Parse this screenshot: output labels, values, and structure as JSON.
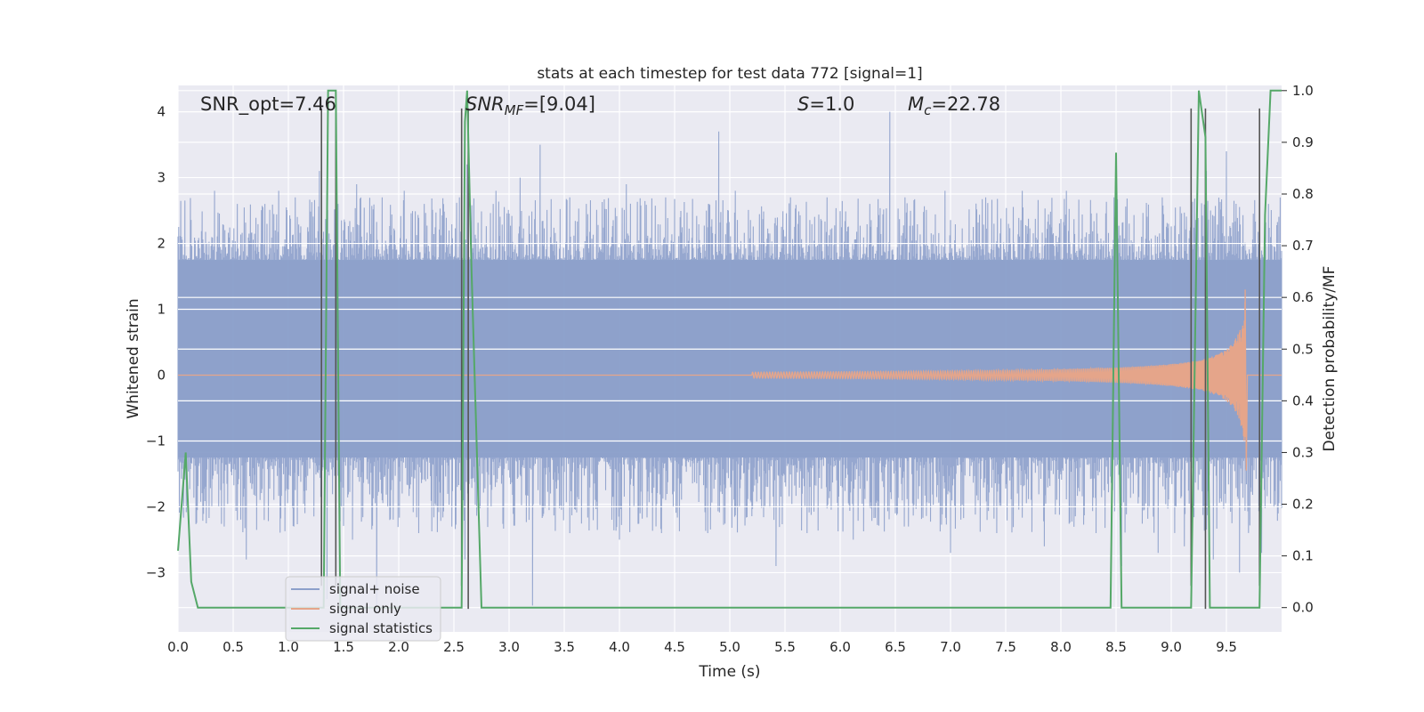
{
  "chart_data": {
    "type": "line",
    "title": "stats at each timestep for test data 772 [signal=1]",
    "xlabel": "Time (s)",
    "ylabel": "Whitened strain",
    "ylabel_right": "Detection probability/MF",
    "xlim": [
      0.0,
      10.0
    ],
    "ylim": [
      -3.9,
      4.4
    ],
    "ylim_right": [
      -0.047,
      1.01
    ],
    "x_ticks": [
      "0.0",
      "0.5",
      "1.0",
      "1.5",
      "2.0",
      "2.5",
      "3.0",
      "3.5",
      "4.0",
      "4.5",
      "5.0",
      "5.5",
      "6.0",
      "6.5",
      "7.0",
      "7.5",
      "8.0",
      "8.5",
      "9.0",
      "9.5"
    ],
    "y_ticks": [
      "−3",
      "−2",
      "−1",
      "0",
      "1",
      "2",
      "3",
      "4"
    ],
    "y_ticks_right": [
      "0.0",
      "0.1",
      "0.2",
      "0.3",
      "0.4",
      "0.5",
      "0.6",
      "0.7",
      "0.8",
      "0.9",
      "1.0"
    ],
    "grid": true,
    "legend_position": "lower-left",
    "annotations": {
      "snr_opt": "SNR_opt=7.46",
      "snr_mf_base": "SNR",
      "snr_mf_sub": "MF",
      "snr_mf_tail": "=[9.04]",
      "s_sym": "S",
      "s_val": "=1.0",
      "mc_base": "M",
      "mc_sub": "c",
      "mc_val": "=22.78"
    },
    "series": [
      {
        "name": "signal+ noise",
        "color": "#8da0cb",
        "noise_band": {
          "upper_typical": 1.8,
          "lower_typical": -1.3
        },
        "peaks_x": [
          0.33,
          0.54,
          0.79,
          0.91,
          1.06,
          1.28,
          1.35,
          1.45,
          1.62,
          1.85,
          2.05,
          2.23,
          2.55,
          2.62,
          2.88,
          3.1,
          3.28,
          3.55,
          3.7,
          4.06,
          4.42,
          4.9,
          5.05,
          5.55,
          5.88,
          6.27,
          6.45,
          6.95,
          7.32,
          7.65,
          8.05,
          8.48,
          8.92,
          9.32,
          9.5,
          9.88
        ],
        "peaks_y": [
          2.8,
          2.6,
          2.6,
          2.8,
          2.7,
          3.1,
          2.8,
          2.6,
          2.9,
          2.7,
          2.8,
          2.6,
          2.7,
          3.2,
          2.8,
          3.0,
          3.5,
          2.7,
          2.6,
          2.9,
          2.7,
          3.7,
          2.8,
          2.7,
          2.7,
          2.6,
          4.0,
          2.8,
          2.7,
          2.8,
          2.8,
          2.7,
          2.7,
          3.1,
          3.4,
          2.6
        ],
        "troughs_x": [
          0.42,
          0.62,
          0.78,
          1.05,
          1.35,
          1.58,
          1.8,
          1.92,
          2.18,
          2.48,
          2.6,
          3.21,
          3.55,
          4.0,
          4.38,
          4.8,
          5.42,
          5.7,
          6.12,
          6.58,
          7.0,
          7.42,
          7.85,
          8.32,
          8.55,
          8.88,
          9.12,
          9.38,
          9.62,
          9.82
        ],
        "troughs_y": [
          -2.3,
          -2.8,
          -2.2,
          -2.3,
          -3.4,
          -2.5,
          -3.6,
          -2.2,
          -2.4,
          -2.3,
          -2.8,
          -3.5,
          -2.4,
          -2.5,
          -2.4,
          -2.4,
          -2.9,
          -2.4,
          -2.5,
          -2.3,
          -2.7,
          -2.4,
          -2.6,
          -2.4,
          -2.9,
          -2.7,
          -2.6,
          -2.8,
          -3.0,
          -2.7
        ]
      },
      {
        "name": "signal only",
        "color": "#e5a58a",
        "chirp": {
          "start": 5.2,
          "end": 9.67,
          "peak_amp": 1.3,
          "final_dip": -1.45
        }
      },
      {
        "name": "signal statistics",
        "color": "#55a868",
        "axis": "right",
        "x": [
          0.0,
          0.07,
          0.12,
          0.18,
          1.32,
          1.36,
          1.43,
          1.47,
          2.57,
          2.6,
          2.62,
          2.66,
          2.75,
          8.45,
          8.5,
          8.55,
          9.18,
          9.25,
          9.31,
          9.35,
          9.8,
          9.85,
          9.9,
          10.0
        ],
        "y": [
          0.11,
          0.3,
          0.05,
          0.0,
          0.0,
          1.0,
          1.0,
          0.0,
          0.0,
          0.94,
          1.0,
          0.65,
          0.0,
          0.0,
          0.88,
          0.0,
          0.0,
          1.0,
          0.91,
          0.0,
          0.0,
          0.76,
          1.0,
          1.0
        ]
      }
    ],
    "vlines": {
      "color": "#555555",
      "x": [
        1.3,
        1.43,
        2.57,
        2.63,
        9.18,
        9.31,
        9.8
      ],
      "top": [
        4.05,
        4.05,
        4.05,
        4.05,
        4.05,
        4.05,
        4.05
      ],
      "bottom": [
        -3.2,
        -3.2,
        -3.2,
        -3.55,
        -3.2,
        -3.55,
        -3.2
      ]
    }
  }
}
